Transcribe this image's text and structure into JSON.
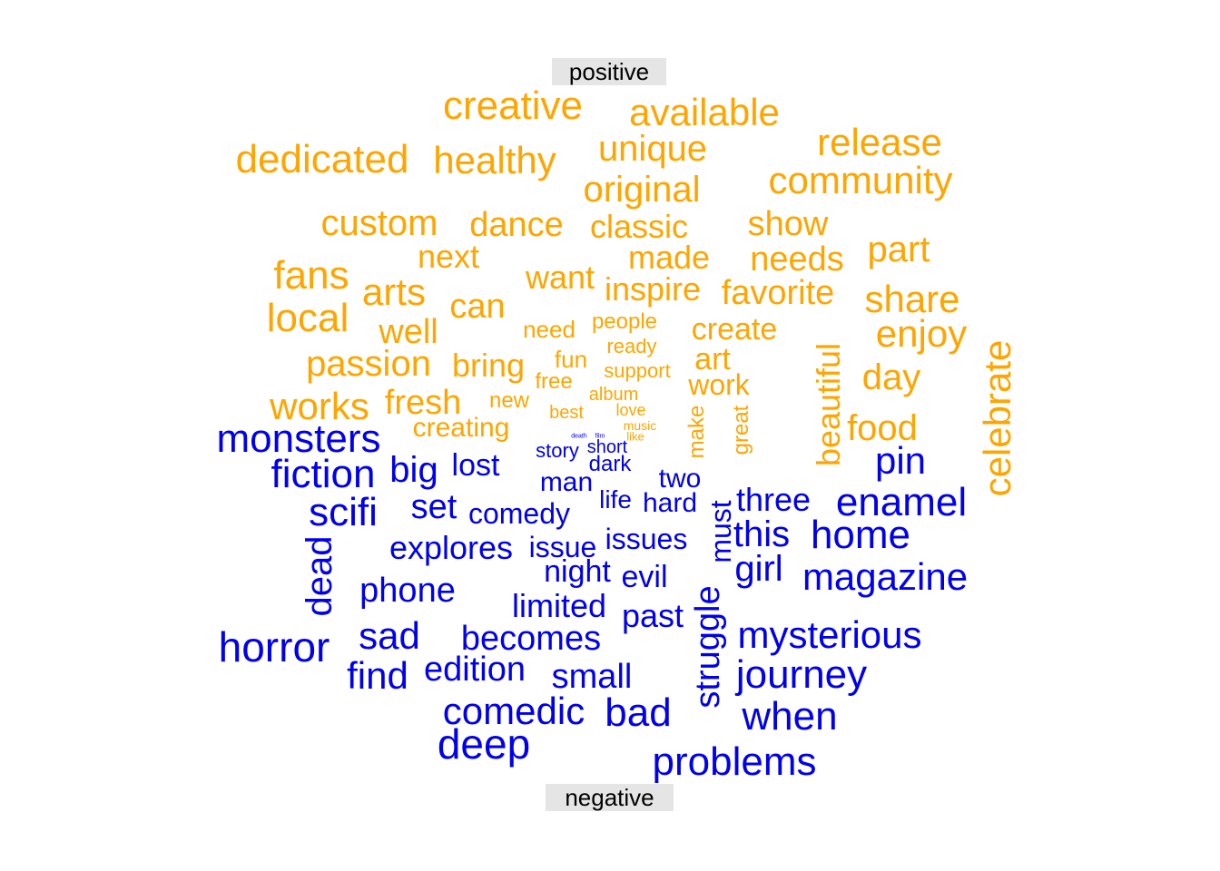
{
  "labels": {
    "positive": "positive",
    "negative": "negative"
  },
  "colors": {
    "positive": "#FFA500",
    "negative": "#0000EE"
  },
  "words": [
    {
      "text": "creative",
      "group": "positive"
    },
    {
      "text": "available",
      "group": "positive"
    },
    {
      "text": "release",
      "group": "positive"
    },
    {
      "text": "dedicated",
      "group": "positive"
    },
    {
      "text": "healthy",
      "group": "positive"
    },
    {
      "text": "unique",
      "group": "positive"
    },
    {
      "text": "community",
      "group": "positive"
    },
    {
      "text": "original",
      "group": "positive"
    },
    {
      "text": "custom",
      "group": "positive"
    },
    {
      "text": "dance",
      "group": "positive"
    },
    {
      "text": "classic",
      "group": "positive"
    },
    {
      "text": "show",
      "group": "positive"
    },
    {
      "text": "next",
      "group": "positive"
    },
    {
      "text": "made",
      "group": "positive"
    },
    {
      "text": "needs",
      "group": "positive"
    },
    {
      "text": "part",
      "group": "positive"
    },
    {
      "text": "fans",
      "group": "positive"
    },
    {
      "text": "want",
      "group": "positive"
    },
    {
      "text": "arts",
      "group": "positive"
    },
    {
      "text": "inspire",
      "group": "positive"
    },
    {
      "text": "favorite",
      "group": "positive"
    },
    {
      "text": "share",
      "group": "positive"
    },
    {
      "text": "can",
      "group": "positive"
    },
    {
      "text": "local",
      "group": "positive"
    },
    {
      "text": "well",
      "group": "positive"
    },
    {
      "text": "need",
      "group": "positive"
    },
    {
      "text": "people",
      "group": "positive"
    },
    {
      "text": "create",
      "group": "positive"
    },
    {
      "text": "enjoy",
      "group": "positive"
    },
    {
      "text": "ready",
      "group": "positive"
    },
    {
      "text": "passion",
      "group": "positive"
    },
    {
      "text": "bring",
      "group": "positive"
    },
    {
      "text": "fun",
      "group": "positive"
    },
    {
      "text": "art",
      "group": "positive"
    },
    {
      "text": "free",
      "group": "positive"
    },
    {
      "text": "support",
      "group": "positive"
    },
    {
      "text": "work",
      "group": "positive"
    },
    {
      "text": "day",
      "group": "positive"
    },
    {
      "text": "works",
      "group": "positive"
    },
    {
      "text": "fresh",
      "group": "positive"
    },
    {
      "text": "new",
      "group": "positive"
    },
    {
      "text": "album",
      "group": "positive"
    },
    {
      "text": "best",
      "group": "positive"
    },
    {
      "text": "love",
      "group": "positive"
    },
    {
      "text": "creating",
      "group": "positive"
    },
    {
      "text": "music",
      "group": "positive"
    },
    {
      "text": "like",
      "group": "positive"
    },
    {
      "text": "food",
      "group": "positive"
    },
    {
      "text": "make",
      "group": "positive"
    },
    {
      "text": "great",
      "group": "positive"
    },
    {
      "text": "beautiful",
      "group": "positive"
    },
    {
      "text": "celebrate",
      "group": "positive"
    },
    {
      "text": "monsters",
      "group": "negative"
    },
    {
      "text": "fiction",
      "group": "negative"
    },
    {
      "text": "big",
      "group": "negative"
    },
    {
      "text": "lost",
      "group": "negative"
    },
    {
      "text": "death",
      "group": "negative"
    },
    {
      "text": "film",
      "group": "negative"
    },
    {
      "text": "story",
      "group": "negative"
    },
    {
      "text": "short",
      "group": "negative"
    },
    {
      "text": "dark",
      "group": "negative"
    },
    {
      "text": "pin",
      "group": "negative"
    },
    {
      "text": "man",
      "group": "negative"
    },
    {
      "text": "two",
      "group": "negative"
    },
    {
      "text": "scifi",
      "group": "negative"
    },
    {
      "text": "set",
      "group": "negative"
    },
    {
      "text": "comedy",
      "group": "negative"
    },
    {
      "text": "life",
      "group": "negative"
    },
    {
      "text": "hard",
      "group": "negative"
    },
    {
      "text": "three",
      "group": "negative"
    },
    {
      "text": "enamel",
      "group": "negative"
    },
    {
      "text": "explores",
      "group": "negative"
    },
    {
      "text": "issue",
      "group": "negative"
    },
    {
      "text": "issues",
      "group": "negative"
    },
    {
      "text": "this",
      "group": "negative"
    },
    {
      "text": "home",
      "group": "negative"
    },
    {
      "text": "night",
      "group": "negative"
    },
    {
      "text": "evil",
      "group": "negative"
    },
    {
      "text": "girl",
      "group": "negative"
    },
    {
      "text": "magazine",
      "group": "negative"
    },
    {
      "text": "phone",
      "group": "negative"
    },
    {
      "text": "limited",
      "group": "negative"
    },
    {
      "text": "past",
      "group": "negative"
    },
    {
      "text": "horror",
      "group": "negative"
    },
    {
      "text": "sad",
      "group": "negative"
    },
    {
      "text": "becomes",
      "group": "negative"
    },
    {
      "text": "mysterious",
      "group": "negative"
    },
    {
      "text": "find",
      "group": "negative"
    },
    {
      "text": "edition",
      "group": "negative"
    },
    {
      "text": "small",
      "group": "negative"
    },
    {
      "text": "journey",
      "group": "negative"
    },
    {
      "text": "comedic",
      "group": "negative"
    },
    {
      "text": "bad",
      "group": "negative"
    },
    {
      "text": "when",
      "group": "negative"
    },
    {
      "text": "deep",
      "group": "negative"
    },
    {
      "text": "problems",
      "group": "negative"
    },
    {
      "text": "dead",
      "group": "negative"
    },
    {
      "text": "must",
      "group": "negative"
    },
    {
      "text": "struggle",
      "group": "negative"
    }
  ]
}
